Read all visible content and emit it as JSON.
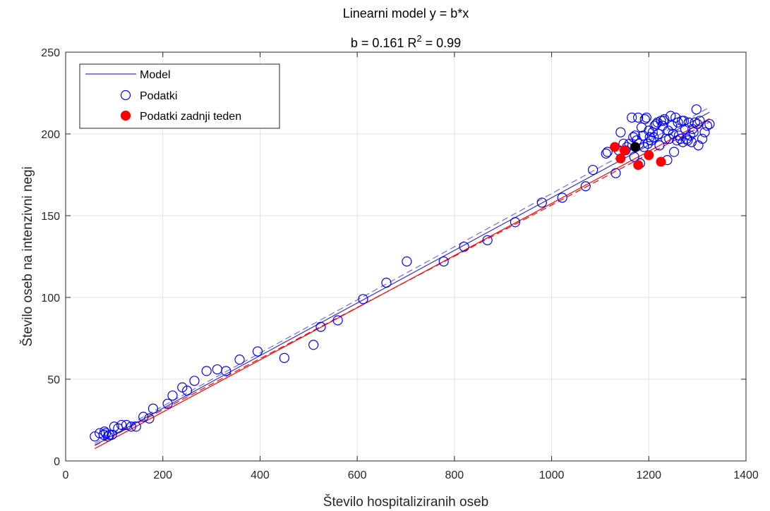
{
  "chart_data": {
    "type": "scatter",
    "title_line1": "Linearni model y = b*x",
    "title_b": "b = 0.161 R",
    "title_sup": "2",
    "title_r2": " = 0.99",
    "xlabel": "Število hospitaliziranih oseb",
    "ylabel": "Število oseb na intenzivni negi",
    "xlim": [
      0,
      1400
    ],
    "ylim": [
      0,
      250
    ],
    "xticks": [
      0,
      200,
      400,
      600,
      800,
      1000,
      1200,
      1400
    ],
    "yticks": [
      0,
      50,
      100,
      150,
      200,
      250
    ],
    "grid": true,
    "legend_position": "top-left",
    "model_b": 0.161,
    "fit_range": [
      60,
      1325
    ],
    "colors": {
      "model": "#3333cc",
      "data": "#0000ff",
      "last_week": "#ff0000",
      "highlight": "#000000",
      "dashed_fit": "#ff0000"
    },
    "series": [
      {
        "name": "Model",
        "kind": "line",
        "x": [
          60,
          1325
        ],
        "y": [
          9.66,
          213.3
        ]
      },
      {
        "name": "Podatki",
        "kind": "scatter",
        "x": [
          60,
          70,
          78,
          80,
          83,
          87,
          90,
          95,
          100,
          108,
          115,
          125,
          135,
          145,
          160,
          172,
          180,
          210,
          220,
          240,
          250,
          265,
          290,
          312,
          330,
          358,
          395,
          450,
          510,
          525,
          560,
          612,
          660,
          702,
          778,
          820,
          868,
          925,
          980,
          1022,
          1070,
          1085,
          1112,
          1115,
          1132,
          1138,
          1142,
          1148,
          1152,
          1155,
          1160,
          1165,
          1168,
          1170,
          1172,
          1175,
          1178,
          1180,
          1182,
          1185,
          1188,
          1190,
          1192,
          1195,
          1198,
          1200,
          1202,
          1205,
          1208,
          1210,
          1212,
          1215,
          1218,
          1220,
          1222,
          1225,
          1228,
          1230,
          1232,
          1235,
          1238,
          1240,
          1242,
          1245,
          1248,
          1250,
          1252,
          1255,
          1258,
          1260,
          1262,
          1265,
          1268,
          1270,
          1272,
          1275,
          1278,
          1280,
          1282,
          1285,
          1288,
          1290,
          1292,
          1295,
          1298,
          1300,
          1302,
          1305,
          1310,
          1315,
          1320,
          1325
        ],
        "y": [
          15,
          17,
          16,
          18,
          17,
          15,
          16,
          16,
          21,
          20,
          22,
          22,
          21,
          21,
          27,
          26,
          32,
          35,
          40,
          45,
          43,
          49,
          55,
          56,
          55,
          62,
          67,
          63,
          71,
          82,
          86,
          99,
          109,
          122,
          122,
          131,
          135,
          146,
          158,
          161,
          168,
          178,
          188,
          189,
          176,
          190,
          201,
          194,
          190,
          192,
          194,
          210,
          198,
          186,
          199,
          196,
          210,
          194,
          182,
          204,
          199,
          192,
          209,
          210,
          194,
          202,
          198,
          196,
          201,
          198,
          205,
          206,
          207,
          200,
          193,
          208,
          205,
          208,
          209,
          197,
          184,
          202,
          197,
          211,
          205,
          200,
          189,
          210,
          196,
          207,
          199,
          197,
          208,
          195,
          208,
          203,
          197,
          196,
          207,
          199,
          195,
          203,
          201,
          207,
          215,
          206,
          193,
          208,
          197,
          201,
          205,
          206
        ]
      },
      {
        "name": "Podatki zadnji teden",
        "kind": "scatter",
        "x": [
          1130,
          1142,
          1150,
          1178,
          1200,
          1225
        ],
        "y": [
          192,
          185,
          190,
          181,
          187,
          183
        ]
      }
    ],
    "highlight_point": {
      "x": 1172,
      "y": 192
    }
  }
}
